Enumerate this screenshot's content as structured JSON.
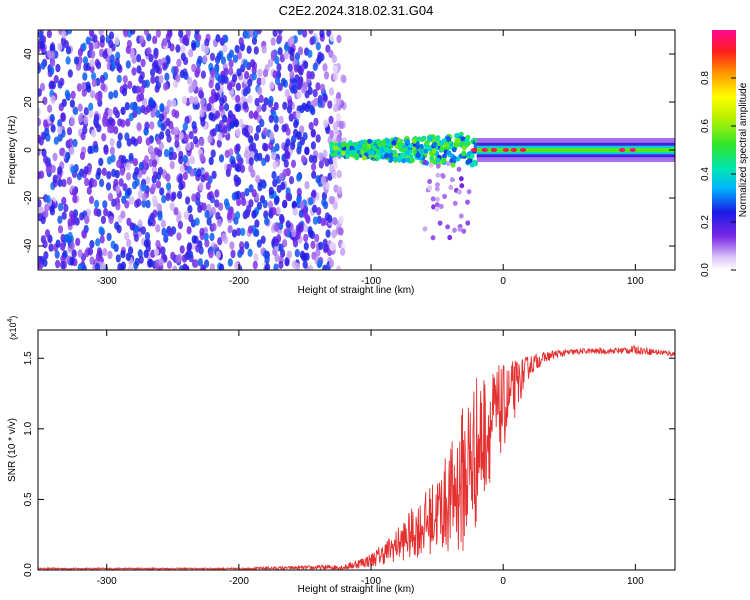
{
  "title": "C2E2.2024.318.02.31.G04",
  "chart_data": [
    {
      "type": "heatmap",
      "xlabel": "Height of straight line (km)",
      "ylabel": "Frequency (Hz)",
      "xlim": [
        -352,
        130
      ],
      "ylim": [
        -50,
        50
      ],
      "xticks": [
        -300,
        -200,
        -100,
        0,
        100
      ],
      "yticks": [
        -40,
        -20,
        0,
        20,
        40
      ],
      "colorbar": {
        "label": "Normalized spectral amplitude",
        "range": [
          0,
          1
        ],
        "ticks": [
          0.0,
          0.2,
          0.4,
          0.6,
          0.8
        ],
        "tick_labels": [
          "0.0",
          "0.2",
          "0.4",
          "0.6",
          "0.8"
        ]
      },
      "regions": [
        {
          "name": "noise",
          "x": [
            -352,
            -130
          ],
          "y": [
            -50,
            50
          ],
          "amplitude": [
            0.05,
            0.3
          ]
        },
        {
          "name": "noise-fade",
          "x": [
            -130,
            -120
          ],
          "y": [
            -50,
            50
          ],
          "amplitude": [
            0.02,
            0.12
          ]
        },
        {
          "name": "signal-scattered",
          "x": [
            -130,
            -20
          ],
          "y_center": 0,
          "y_halfwidth": 8,
          "amplitude": [
            0.25,
            0.6
          ]
        },
        {
          "name": "signal-tail",
          "x": [
            -60,
            -25
          ],
          "y": [
            -38,
            -5
          ],
          "amplitude": [
            0.05,
            0.15
          ]
        },
        {
          "name": "signal-band",
          "x": [
            -20,
            130
          ],
          "y_center": 0,
          "y_halfwidth": 3,
          "amplitude": [
            0.5,
            0.95
          ]
        }
      ],
      "peaks": [
        {
          "x": -22,
          "y": 0,
          "amplitude": 0.95
        },
        {
          "x": -14,
          "y": 0,
          "amplitude": 0.95
        },
        {
          "x": -7,
          "y": 0,
          "amplitude": 0.95
        },
        {
          "x": 2,
          "y": 0,
          "amplitude": 0.95
        },
        {
          "x": 8,
          "y": 0,
          "amplitude": 0.95
        },
        {
          "x": 15,
          "y": 0,
          "amplitude": 0.95
        },
        {
          "x": 90,
          "y": 0,
          "amplitude": 0.97
        },
        {
          "x": 98,
          "y": 0,
          "amplitude": 0.97
        }
      ]
    },
    {
      "type": "line",
      "xlabel": "Height of straight line (km)",
      "ylabel": "SNR (10 * v/v)",
      "scale_label": "(x10",
      "scale_exponent": "4",
      "scale_close": ")",
      "xlim": [
        -352,
        130
      ],
      "ylim": [
        0,
        1.7
      ],
      "xticks": [
        -300,
        -200,
        -100,
        0,
        100
      ],
      "yticks": [
        0.0,
        0.5,
        1.0,
        1.5
      ],
      "ytick_labels": [
        "0.0",
        "0.5",
        "1.0",
        "1.5"
      ],
      "color": "#e53030",
      "series": [
        {
          "x": [
            -352,
            -300,
            -200,
            -120,
            -100,
            -90,
            -80,
            -70,
            -60,
            -50,
            -40,
            -30,
            -25,
            -20,
            -15,
            -10,
            -5,
            0,
            5,
            10,
            15,
            20,
            30,
            40,
            60,
            80,
            100,
            120,
            130
          ],
          "y": [
            0.01,
            0.01,
            0.01,
            0.02,
            0.07,
            0.12,
            0.18,
            0.25,
            0.32,
            0.4,
            0.5,
            0.65,
            0.75,
            0.85,
            0.95,
            1.02,
            1.1,
            1.15,
            1.22,
            1.3,
            1.38,
            1.45,
            1.5,
            1.53,
            1.55,
            1.55,
            1.56,
            1.54,
            1.53
          ],
          "spread": [
            0.005,
            0.005,
            0.005,
            0.02,
            0.05,
            0.08,
            0.12,
            0.18,
            0.22,
            0.28,
            0.38,
            0.55,
            0.6,
            0.55,
            0.45,
            0.4,
            0.35,
            0.3,
            0.25,
            0.2,
            0.12,
            0.08,
            0.04,
            0.03,
            0.02,
            0.02,
            0.03,
            0.02,
            0.02
          ]
        }
      ]
    }
  ]
}
